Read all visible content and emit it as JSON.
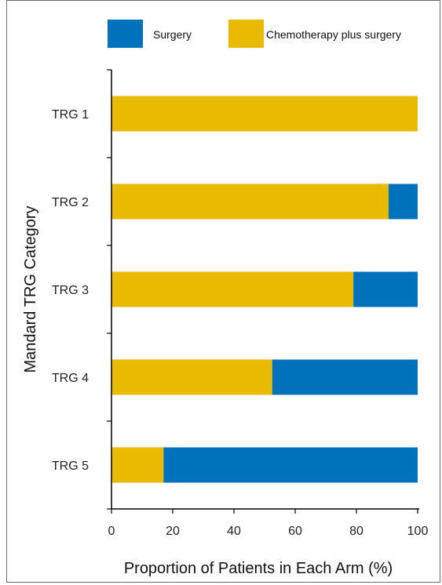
{
  "chart_data": {
    "type": "bar",
    "orientation": "horizontal",
    "stacked": true,
    "categories": [
      "TRG 1",
      "TRG 2",
      "TRG 3",
      "TRG 4",
      "TRG 5"
    ],
    "series": [
      {
        "name": "Chemotherapy plus surgery",
        "color": "#E8BB00",
        "values": [
          100,
          90.5,
          79,
          52.5,
          17
        ]
      },
      {
        "name": "Surgery",
        "color": "#0072BC",
        "values": [
          0,
          9.5,
          21,
          47.5,
          83
        ]
      }
    ],
    "xlabel": "Proportion of Patients in Each Arm (%)",
    "ylabel": "Mandard TRG Category",
    "xlim": [
      0,
      100
    ],
    "xticks": [
      "0",
      "20",
      "40",
      "60",
      "80",
      "100"
    ],
    "grid": false,
    "legend": {
      "placement": "top",
      "entries": [
        {
          "label": "Surgery",
          "color": "#0072BC"
        },
        {
          "label": "Chemotherapy plus surgery",
          "color": "#E8BB00"
        }
      ]
    }
  }
}
